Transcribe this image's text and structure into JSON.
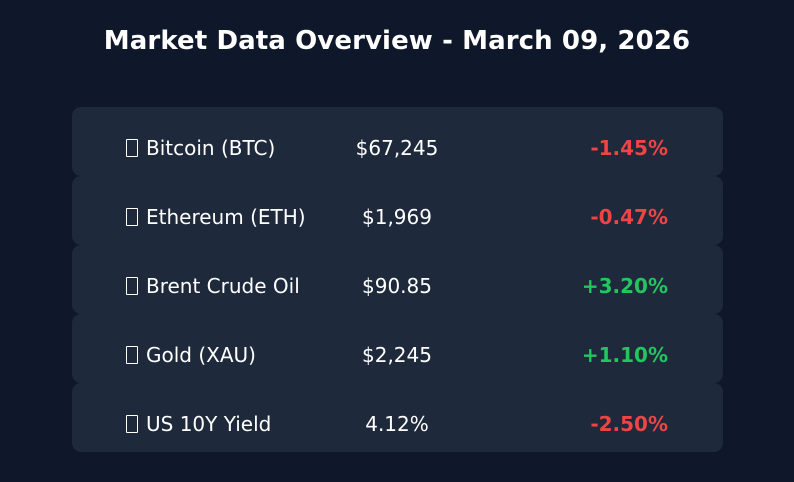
{
  "title": "Market Data Overview - March 09, 2026",
  "colors": {
    "background": "#0f172a",
    "card": "#1e293b",
    "positive": "#22c55e",
    "negative": "#ef4444"
  },
  "rows": [
    {
      "icon": "missing-glyph-icon",
      "name": "Bitcoin (BTC)",
      "price": "$67,245",
      "change": "-1.45%",
      "direction": "down"
    },
    {
      "icon": "missing-glyph-icon",
      "name": "Ethereum (ETH)",
      "price": "$1,969",
      "change": "-0.47%",
      "direction": "down"
    },
    {
      "icon": "missing-glyph-icon",
      "name": "Brent Crude Oil",
      "price": "$90.85",
      "change": "+3.20%",
      "direction": "up"
    },
    {
      "icon": "missing-glyph-icon",
      "name": "Gold (XAU)",
      "price": "$2,245",
      "change": "+1.10%",
      "direction": "up"
    },
    {
      "icon": "missing-glyph-icon",
      "name": "US 10Y Yield",
      "price": "4.12%",
      "change": "-2.50%",
      "direction": "down"
    }
  ]
}
